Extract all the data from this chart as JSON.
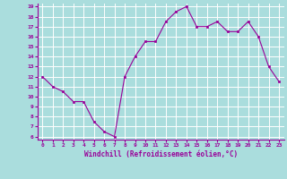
{
  "x": [
    0,
    1,
    2,
    3,
    4,
    5,
    6,
    7,
    8,
    9,
    10,
    11,
    12,
    13,
    14,
    15,
    16,
    17,
    18,
    19,
    20,
    21,
    22,
    23
  ],
  "y": [
    12,
    11,
    10.5,
    9.5,
    9.5,
    7.5,
    6.5,
    6,
    12,
    14,
    15.5,
    15.5,
    17.5,
    18.5,
    19,
    17,
    17,
    17.5,
    16.5,
    16.5,
    17.5,
    16,
    13,
    11.5
  ],
  "line_color": "#990099",
  "marker_color": "#990099",
  "bg_color": "#aadddd",
  "grid_color": "#ffffff",
  "xlabel": "Windchill (Refroidissement éolien,°C)",
  "xlabel_color": "#990099",
  "tick_color": "#990099",
  "ylim": [
    6,
    19
  ],
  "xlim": [
    -0.5,
    23.5
  ],
  "yticks": [
    6,
    7,
    8,
    9,
    10,
    11,
    12,
    13,
    14,
    15,
    16,
    17,
    18,
    19
  ],
  "xticks": [
    0,
    1,
    2,
    3,
    4,
    5,
    6,
    7,
    8,
    9,
    10,
    11,
    12,
    13,
    14,
    15,
    16,
    17,
    18,
    19,
    20,
    21,
    22,
    23
  ],
  "xtick_labels": [
    "0",
    "1",
    "2",
    "3",
    "4",
    "5",
    "6",
    "7",
    "8",
    "9",
    "10",
    "11",
    "12",
    "13",
    "14",
    "15",
    "16",
    "17",
    "18",
    "19",
    "20",
    "21",
    "22",
    "23"
  ]
}
